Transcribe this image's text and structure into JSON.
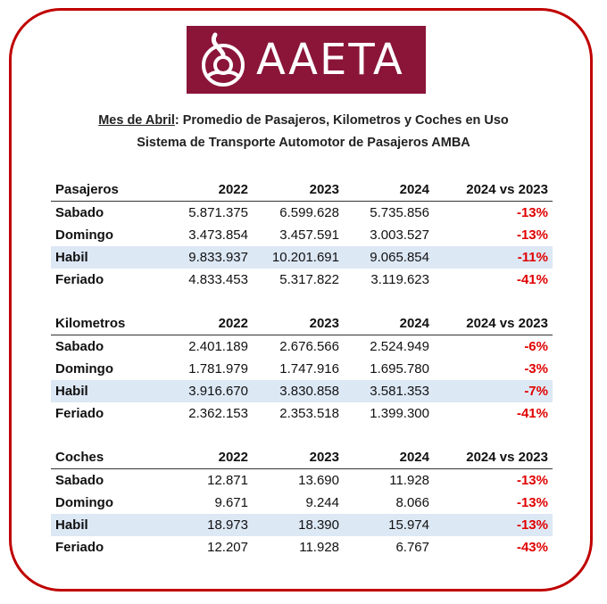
{
  "logo": {
    "text": "AAETA"
  },
  "title": {
    "line1_underlined": "Mes de Abril",
    "line1_rest": ": Promedio de Pasajeros, Kilometros y Coches en Uso",
    "line2": "Sistema de Transporte Automotor de Pasajeros AMBA"
  },
  "colors": {
    "frame": "#c00000",
    "logo_bg": "#8a1538",
    "highlight_row": "#dde8f5",
    "negative": "#e00000"
  },
  "tables": [
    {
      "header": [
        "Pasajeros",
        "2022",
        "2023",
        "2024",
        "2024 vs 2023"
      ],
      "rows": [
        [
          "Sabado",
          "5.871.375",
          "6.599.628",
          "5.735.856",
          "-13%"
        ],
        [
          "Domingo",
          "3.473.854",
          "3.457.591",
          "3.003.527",
          "-13%"
        ],
        [
          "Habil",
          "9.833.937",
          "10.201.691",
          "9.065.854",
          "-11%"
        ],
        [
          "Feriado",
          "4.833.453",
          "5.317.822",
          "3.119.623",
          "-41%"
        ]
      ]
    },
    {
      "header": [
        "Kilometros",
        "2022",
        "2023",
        "2024",
        "2024 vs 2023"
      ],
      "rows": [
        [
          "Sabado",
          "2.401.189",
          "2.676.566",
          "2.524.949",
          "-6%"
        ],
        [
          "Domingo",
          "1.781.979",
          "1.747.916",
          "1.695.780",
          "-3%"
        ],
        [
          "Habil",
          "3.916.670",
          "3.830.858",
          "3.581.353",
          "-7%"
        ],
        [
          "Feriado",
          "2.362.153",
          "2.353.518",
          "1.399.300",
          "-41%"
        ]
      ]
    },
    {
      "header": [
        "Coches",
        "2022",
        "2023",
        "2024",
        "2024 vs 2023"
      ],
      "rows": [
        [
          "Sabado",
          "12.871",
          "13.690",
          "11.928",
          "-13%"
        ],
        [
          "Domingo",
          "9.671",
          "9.244",
          "8.066",
          "-13%"
        ],
        [
          "Habil",
          "18.973",
          "18.390",
          "15.974",
          "-13%"
        ],
        [
          "Feriado",
          "12.207",
          "11.928",
          "6.767",
          "-43%"
        ]
      ]
    }
  ]
}
